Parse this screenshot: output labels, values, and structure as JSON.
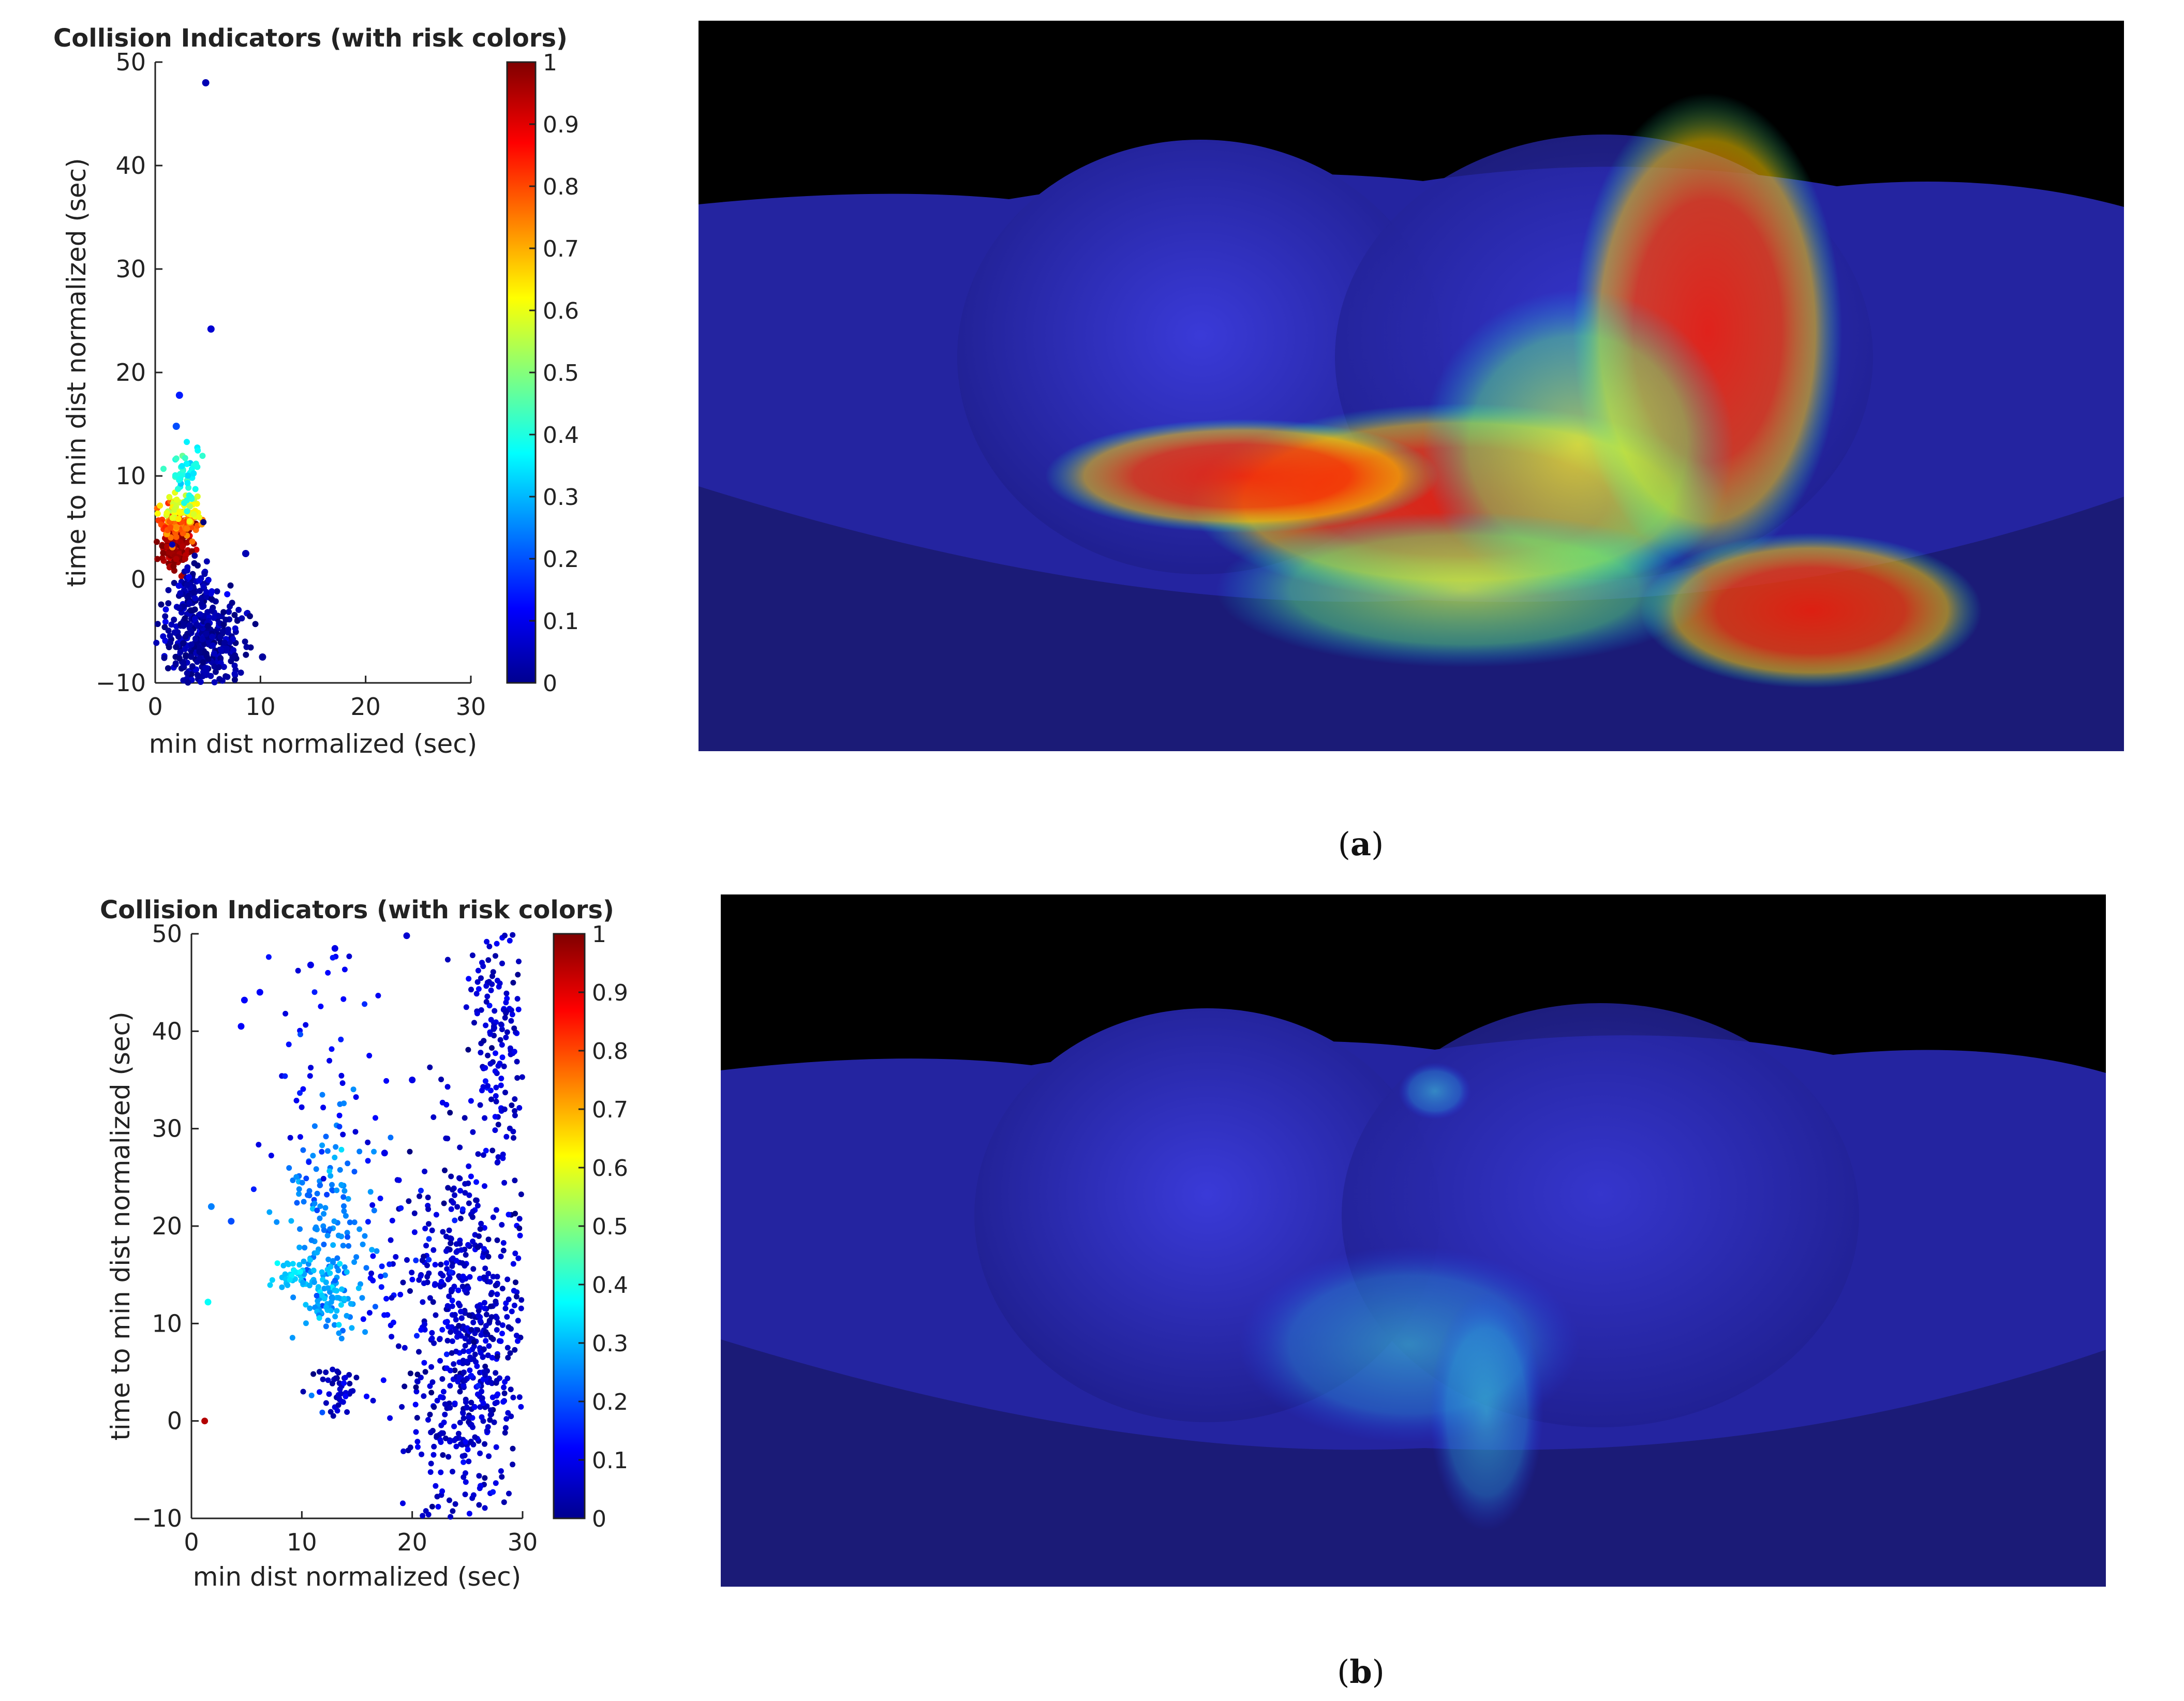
{
  "panels": [
    {
      "caption_prefix": "(",
      "caption_letter": "a",
      "caption_suffix": ")"
    },
    {
      "caption_prefix": "(",
      "caption_letter": "b",
      "caption_suffix": ")"
    }
  ],
  "chart_data": [
    {
      "type": "scatter",
      "title": "Collision Indicators (with risk colors)",
      "xlabel": "min dist normalized (sec)",
      "ylabel": "time to min dist normalized (sec)",
      "xlim": [
        0,
        30
      ],
      "ylim": [
        -10,
        50
      ],
      "xticks": [
        0,
        10,
        20,
        30
      ],
      "yticks": [
        -10,
        0,
        10,
        20,
        30,
        40,
        50
      ],
      "grid": false,
      "colorbar": {
        "min": 0,
        "max": 1,
        "ticks": [
          "0",
          "0.1",
          "0.2",
          "0.3",
          "0.4",
          "0.5",
          "0.6",
          "0.7",
          "0.8",
          "0.9",
          "1"
        ],
        "colormap": "jet"
      },
      "clusters": [
        {
          "x_center": 2.0,
          "x_spread": 0.8,
          "y_center": 3.0,
          "y_spread": 1.2,
          "count": 120,
          "risk": 0.97
        },
        {
          "x_center": 2.3,
          "x_spread": 1.0,
          "y_center": 5.5,
          "y_spread": 0.8,
          "count": 80,
          "risk": 0.78
        },
        {
          "x_center": 2.5,
          "x_spread": 1.0,
          "y_center": 7.0,
          "y_spread": 0.8,
          "count": 50,
          "risk": 0.6
        },
        {
          "x_center": 3.0,
          "x_spread": 1.0,
          "y_center": 10.0,
          "y_spread": 1.5,
          "count": 45,
          "risk": 0.4
        },
        {
          "x_center": 4.5,
          "x_spread": 1.8,
          "y_center": -6.0,
          "y_spread": 2.5,
          "count": 380,
          "risk": 0.03
        },
        {
          "x_center": 3.5,
          "x_spread": 0.8,
          "y_center": -1.0,
          "y_spread": 1.2,
          "count": 60,
          "risk": 0.05
        }
      ],
      "points": [
        {
          "x": 4.8,
          "y": 48.0,
          "risk": 0.05
        },
        {
          "x": 5.3,
          "y": 24.2,
          "risk": 0.08
        },
        {
          "x": 2.3,
          "y": 17.8,
          "risk": 0.15
        },
        {
          "x": 8.6,
          "y": 2.5,
          "risk": 0.05
        },
        {
          "x": 2.0,
          "y": 14.8,
          "risk": 0.2
        },
        {
          "x": 10.2,
          "y": -7.5,
          "risk": 0.03
        }
      ]
    },
    {
      "type": "scatter",
      "title": "Collision Indicators (with risk colors)",
      "xlabel": "min dist normalized (sec)",
      "ylabel": "time to min dist normalized (sec)",
      "xlim": [
        0,
        30
      ],
      "ylim": [
        -10,
        50
      ],
      "xticks": [
        0,
        10,
        20,
        30
      ],
      "yticks": [
        -10,
        0,
        10,
        20,
        30,
        40,
        50
      ],
      "grid": false,
      "colorbar": {
        "min": 0,
        "max": 1,
        "ticks": [
          "0",
          "0.1",
          "0.2",
          "0.3",
          "0.4",
          "0.5",
          "0.6",
          "0.7",
          "0.8",
          "0.9",
          "1"
        ],
        "colormap": "jet"
      },
      "clusters": [
        {
          "x_center": 25.0,
          "x_spread": 2.6,
          "y_center": 8.0,
          "y_spread": 10.0,
          "count": 650,
          "risk": 0.07
        },
        {
          "x_center": 27.5,
          "x_spread": 1.3,
          "y_center": 40.0,
          "y_spread": 6.0,
          "count": 150,
          "risk": 0.08
        },
        {
          "x_center": 12.5,
          "x_spread": 2.2,
          "y_center": 20.0,
          "y_spread": 6.0,
          "count": 150,
          "risk": 0.25
        },
        {
          "x_center": 12.3,
          "x_spread": 1.2,
          "y_center": 13.0,
          "y_spread": 2.0,
          "count": 70,
          "risk": 0.3
        },
        {
          "x_center": 9.0,
          "x_spread": 1.0,
          "y_center": 15.0,
          "y_spread": 0.9,
          "count": 40,
          "risk": 0.33
        },
        {
          "x_center": 13.2,
          "x_spread": 1.0,
          "y_center": 3.5,
          "y_spread": 1.2,
          "count": 45,
          "risk": 0.06
        },
        {
          "x_center": 12.0,
          "x_spread": 3.5,
          "y_center": 36.0,
          "y_spread": 8.0,
          "count": 50,
          "risk": 0.12
        },
        {
          "x_center": 19.0,
          "x_spread": 2.0,
          "y_center": 14.0,
          "y_spread": 5.0,
          "count": 40,
          "risk": 0.12
        }
      ],
      "points": [
        {
          "x": 1.5,
          "y": 12.2,
          "risk": 0.38
        },
        {
          "x": 1.2,
          "y": 0.0,
          "risk": 0.95
        },
        {
          "x": 1.8,
          "y": 22.0,
          "risk": 0.25
        },
        {
          "x": 3.6,
          "y": 20.5,
          "risk": 0.2
        },
        {
          "x": 4.8,
          "y": 43.2,
          "risk": 0.12
        },
        {
          "x": 6.2,
          "y": 44.0,
          "risk": 0.12
        },
        {
          "x": 13.0,
          "y": 48.5,
          "risk": 0.1
        },
        {
          "x": 10.8,
          "y": 46.8,
          "risk": 0.1
        },
        {
          "x": 19.5,
          "y": 49.8,
          "risk": 0.08
        },
        {
          "x": 20.0,
          "y": 35.0,
          "risk": 0.1
        },
        {
          "x": 17.5,
          "y": 27.5,
          "risk": 0.1
        },
        {
          "x": 4.5,
          "y": 40.5,
          "risk": 0.12
        }
      ]
    }
  ]
}
